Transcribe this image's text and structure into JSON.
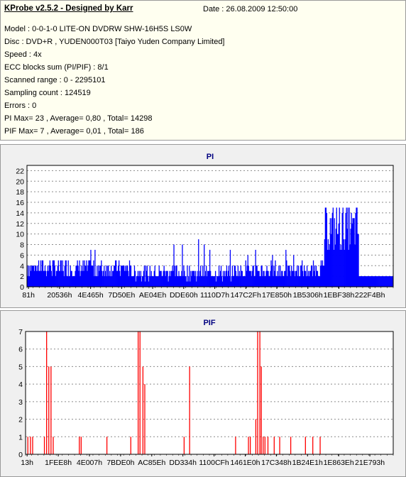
{
  "header": {
    "title": "KProbe v2.5.2 - Designed by Karr",
    "date": "Date : 26.08.2009 12:50:00",
    "lines": [
      "Model : 0-0-1-0 LITE-ON DVDRW SHW-16H5S  LS0W",
      "Disc : DVD+R , YUDEN000T03 [Taiyo Yuden Company Limited]",
      "Speed : 4x",
      "ECC blocks sum (PI/PIF) : 8/1",
      "Scanned range : 0 - 2295101",
      "Sampling count : 124519",
      "Errors : 0",
      "PI Max= 23 , Average= 0,80 , Total= 14298",
      "PIF Max= 7 , Average= 0,01 , Total= 186"
    ]
  },
  "chart_data": [
    {
      "type": "bar",
      "title": "PI",
      "color": "#0000ff",
      "ylim": [
        0,
        23
      ],
      "y_ticks": [
        0,
        2,
        4,
        6,
        8,
        10,
        12,
        14,
        16,
        18,
        20,
        22
      ],
      "x_tick_labels": [
        "81h",
        "20536h",
        "4E465h",
        "7D50Eh",
        "AE04Eh",
        "DDE60h",
        "1110D7h",
        "147C2Fh",
        "17E850h",
        "1B5306h",
        "1EBF38h",
        "222F4Bh"
      ],
      "grid": true,
      "samples": 520,
      "segments": [
        {
          "from": 0.0,
          "to": 0.075,
          "base": 2.0,
          "spread": 3.5,
          "peak": 5
        },
        {
          "from": 0.075,
          "to": 0.28,
          "base": 1.8,
          "spread": 3.5,
          "peak": 8
        },
        {
          "from": 0.28,
          "to": 0.57,
          "base": 1.3,
          "spread": 2.8,
          "peak": 9
        },
        {
          "from": 0.57,
          "to": 0.78,
          "base": 1.5,
          "spread": 3.2,
          "peak": 8
        },
        {
          "from": 0.78,
          "to": 0.81,
          "base": 2.0,
          "spread": 3.0,
          "peak": 6
        },
        {
          "from": 0.81,
          "to": 0.905,
          "base": 6.5,
          "spread": 9.0,
          "peak": 23
        },
        {
          "from": 0.905,
          "to": 1.0,
          "base": 1.5,
          "spread": 1.0,
          "peak": 5
        }
      ]
    },
    {
      "type": "bar",
      "title": "PIF",
      "color": "#ff0000",
      "ylim": [
        0,
        7
      ],
      "y_ticks": [
        0,
        1,
        2,
        3,
        4,
        5,
        6,
        7
      ],
      "x_tick_labels": [
        "13h",
        "1FEE8h",
        "4E007h",
        "7BDE0h",
        "AC85Eh",
        "DD334h",
        "1100CFh",
        "1461E0h",
        "17C348h",
        "1B24E1h",
        "1E863Eh",
        "21E793h"
      ],
      "grid": true,
      "points": [
        [
          0.005,
          1
        ],
        [
          0.012,
          1
        ],
        [
          0.018,
          1
        ],
        [
          0.05,
          1
        ],
        [
          0.056,
          7
        ],
        [
          0.062,
          5
        ],
        [
          0.068,
          5
        ],
        [
          0.074,
          1
        ],
        [
          0.145,
          1
        ],
        [
          0.15,
          1
        ],
        [
          0.22,
          1
        ],
        [
          0.285,
          1
        ],
        [
          0.305,
          7
        ],
        [
          0.31,
          7
        ],
        [
          0.318,
          5
        ],
        [
          0.323,
          4
        ],
        [
          0.43,
          1
        ],
        [
          0.445,
          5
        ],
        [
          0.57,
          1
        ],
        [
          0.605,
          1
        ],
        [
          0.61,
          1
        ],
        [
          0.625,
          2
        ],
        [
          0.63,
          7
        ],
        [
          0.636,
          7
        ],
        [
          0.64,
          5
        ],
        [
          0.645,
          1
        ],
        [
          0.65,
          1
        ],
        [
          0.658,
          1
        ],
        [
          0.675,
          1
        ],
        [
          0.69,
          1
        ],
        [
          0.72,
          1
        ],
        [
          0.76,
          1
        ],
        [
          0.78,
          1
        ],
        [
          0.8,
          1
        ],
        [
          0.8,
          1
        ],
        [
          0.8,
          1
        ],
        [
          0.8,
          1
        ],
        [
          0.8,
          1
        ],
        [
          0.8,
          1
        ],
        [
          0.8,
          1
        ],
        [
          0.8,
          1
        ],
        [
          0.8,
          1
        ],
        [
          0.8,
          1
        ],
        [
          0.8,
          1
        ],
        [
          0.8,
          1
        ],
        [
          0.8,
          1
        ],
        [
          0.8,
          1
        ],
        [
          0.8,
          1
        ],
        [
          0.8,
          1
        ],
        [
          0.8,
          1
        ],
        [
          0.8,
          1
        ],
        [
          0.8,
          1
        ],
        [
          0.8,
          1
        ],
        [
          0.8,
          1
        ],
        [
          0.8,
          1
        ],
        [
          0.8,
          1
        ],
        [
          0.8,
          1
        ],
        [
          0.8,
          1
        ],
        [
          0.8,
          1
        ],
        [
          0.8,
          1
        ],
        [
          0.8,
          1
        ],
        [
          0.8,
          1
        ],
        [
          0.8,
          1
        ],
        [
          0.8,
          1
        ],
        [
          0.8,
          1
        ],
        [
          0.8,
          1
        ],
        [
          0.8,
          1
        ],
        [
          0.8,
          1
        ],
        [
          0.8,
          1
        ],
        [
          0.8,
          1
        ],
        [
          0.8,
          1
        ],
        [
          0.8,
          1
        ],
        [
          0.8,
          1
        ],
        [
          0.8,
          1
        ],
        [
          0.8,
          1
        ],
        [
          0.8,
          1
        ],
        [
          0.8,
          1
        ],
        [
          0.8,
          1
        ],
        [
          0.8,
          1
        ],
        [
          0.8,
          1
        ],
        [
          0.8,
          1
        ],
        [
          0.8,
          1
        ],
        [
          0.8,
          1
        ],
        [
          0.8,
          1
        ],
        [
          0.8,
          1
        ],
        [
          0.8,
          1
        ],
        [
          0.8,
          1
        ],
        [
          0.8,
          1
        ],
        [
          0.8,
          1
        ],
        [
          0.8,
          1
        ],
        [
          0.8,
          1
        ],
        [
          0.8,
          1
        ],
        [
          0.8,
          1
        ],
        [
          0.8,
          1
        ],
        [
          0.8,
          1
        ],
        [
          0.8,
          1
        ],
        [
          0.8,
          1
        ],
        [
          0.8,
          1
        ],
        [
          0.8,
          1
        ],
        [
          0.8,
          1
        ],
        [
          0.8,
          1
        ],
        [
          0.8,
          1
        ],
        [
          0.8,
          1
        ],
        [
          0.8,
          1
        ],
        [
          0.8,
          1
        ],
        [
          0.8,
          1
        ],
        [
          0.8,
          1
        ],
        [
          0.8,
          1
        ],
        [
          0.8,
          1
        ],
        [
          0.8,
          1
        ],
        [
          0.8,
          1
        ],
        [
          0.8,
          1
        ],
        [
          0.8,
          1
        ],
        [
          0.8,
          1
        ],
        [
          0.8,
          1
        ],
        [
          0.8,
          1
        ],
        [
          0.8,
          1
        ],
        [
          0.8,
          1
        ],
        [
          0.8,
          1
        ],
        [
          0.8,
          1
        ],
        [
          0.8,
          1
        ],
        [
          0.8,
          1
        ],
        [
          0.8,
          1
        ],
        [
          0.8,
          1
        ],
        [
          0.8,
          1
        ],
        [
          0.8,
          1
        ],
        [
          0.8,
          1
        ],
        [
          0.8,
          1
        ],
        [
          0.8,
          1
        ],
        [
          0.8,
          1
        ],
        [
          0.8,
          1
        ],
        [
          0.8,
          1
        ],
        [
          0.8,
          1
        ],
        [
          0.8,
          1
        ],
        [
          0.8,
          1
        ],
        [
          0.8,
          1
        ],
        [
          0.8,
          1
        ],
        [
          0.8,
          1
        ],
        [
          0.8,
          1
        ],
        [
          0.8,
          1
        ],
        [
          0.8,
          1
        ],
        [
          0.8,
          1
        ],
        [
          0.8,
          1
        ],
        [
          0.8,
          1
        ],
        [
          0.8,
          1
        ],
        [
          0.8,
          1
        ],
        [
          0.8,
          1
        ],
        [
          0.8,
          1
        ],
        [
          0.8,
          1
        ],
        [
          0.8,
          1
        ]
      ]
    }
  ]
}
